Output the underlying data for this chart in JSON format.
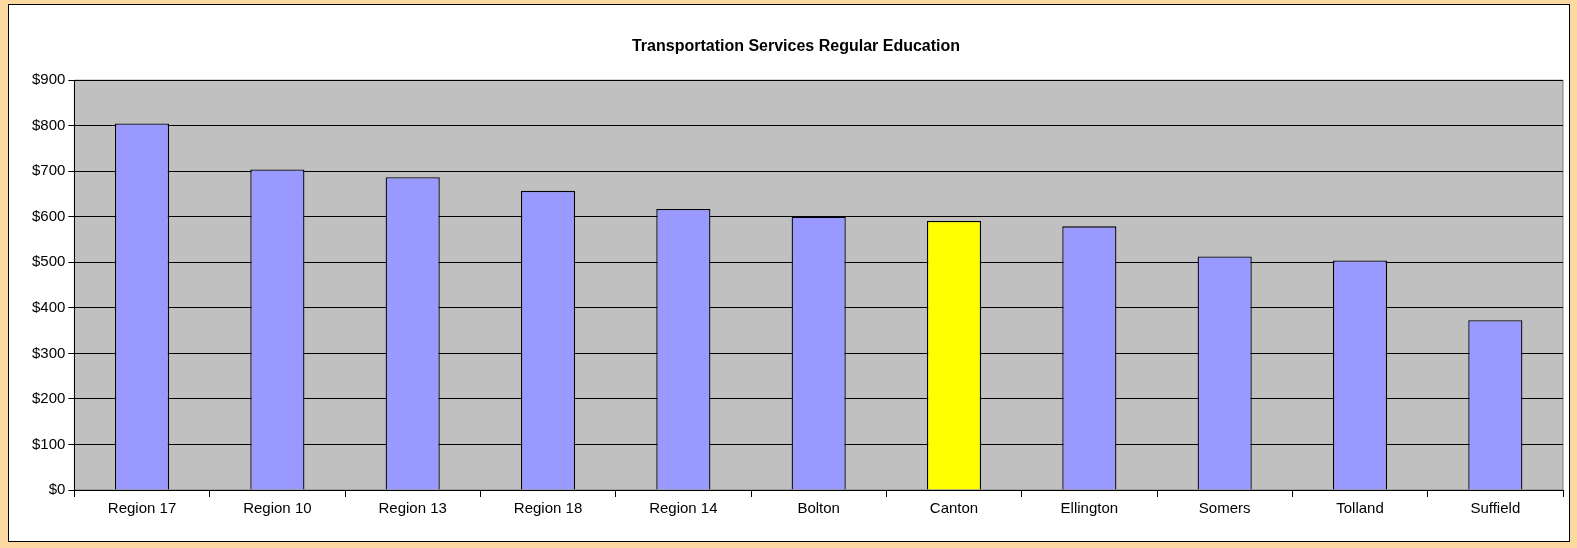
{
  "chart_data": {
    "type": "bar",
    "title": "Transportation Services Regular Education",
    "categories": [
      "Region 17",
      "Region 10",
      "Region 13",
      "Region 18",
      "Region 14",
      "Bolton",
      "Canton",
      "Ellington",
      "Somers",
      "Tolland",
      "Suffield"
    ],
    "values": [
      805,
      704,
      687,
      657,
      617,
      600,
      591,
      579,
      513,
      504,
      373
    ],
    "colors": [
      "#9999ff",
      "#9999ff",
      "#9999ff",
      "#9999ff",
      "#9999ff",
      "#9999ff",
      "#ffff00",
      "#9999ff",
      "#9999ff",
      "#9999ff",
      "#9999ff"
    ],
    "ylim": [
      0,
      900
    ],
    "yticks": [
      {
        "value": 0,
        "label": "$0"
      },
      {
        "value": 100,
        "label": "$100"
      },
      {
        "value": 200,
        "label": "$200"
      },
      {
        "value": 300,
        "label": "$300"
      },
      {
        "value": 400,
        "label": "$400"
      },
      {
        "value": 500,
        "label": "$500"
      },
      {
        "value": 600,
        "label": "$600"
      },
      {
        "value": 700,
        "label": "$700"
      },
      {
        "value": 800,
        "label": "$800"
      },
      {
        "value": 900,
        "label": "$900"
      }
    ],
    "grid": "y",
    "legend": false
  }
}
